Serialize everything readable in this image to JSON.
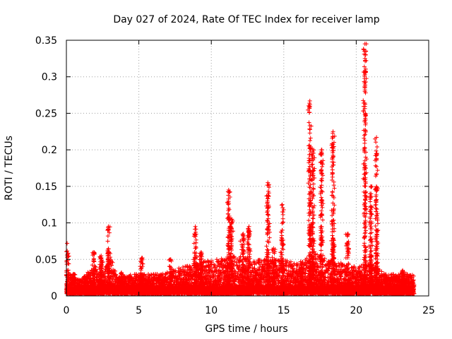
{
  "chart_data": {
    "type": "scatter",
    "title": "Day 027 of 2024, Rate Of TEC Index for receiver lamp",
    "xlabel": "GPS time / hours",
    "ylabel": "ROTI / TECUs",
    "xlim": [
      0,
      25
    ],
    "ylim": [
      0,
      0.35
    ],
    "xticks": [
      0,
      5,
      10,
      15,
      20,
      25
    ],
    "xtick_labels": [
      "0",
      "5",
      "10",
      "15",
      "20",
      "25"
    ],
    "yticks": [
      0,
      0.05,
      0.1,
      0.15,
      0.2,
      0.25,
      0.3,
      0.35
    ],
    "ytick_labels": [
      "0",
      "0.05",
      "0.1",
      "0.15",
      "0.2",
      "0.25",
      "0.3",
      "0.35"
    ],
    "grid": true,
    "marker": "+",
    "color": "#ff0000",
    "data_range": [
      0,
      24
    ],
    "baseline": {
      "min": 0.003,
      "typical": 0.02
    },
    "envelope": [
      [
        0.0,
        0.035
      ],
      [
        0.5,
        0.025
      ],
      [
        1.0,
        0.022
      ],
      [
        2.0,
        0.045
      ],
      [
        2.5,
        0.03
      ],
      [
        3.0,
        0.06
      ],
      [
        3.5,
        0.025
      ],
      [
        4.5,
        0.03
      ],
      [
        5.5,
        0.03
      ],
      [
        6.5,
        0.03
      ],
      [
        8.0,
        0.04
      ],
      [
        9.0,
        0.045
      ],
      [
        10.0,
        0.05
      ],
      [
        11.0,
        0.055
      ],
      [
        12.0,
        0.055
      ],
      [
        13.0,
        0.05
      ],
      [
        14.0,
        0.05
      ],
      [
        15.0,
        0.05
      ],
      [
        16.0,
        0.045
      ],
      [
        17.0,
        0.06
      ],
      [
        18.0,
        0.05
      ],
      [
        19.0,
        0.045
      ],
      [
        20.0,
        0.04
      ],
      [
        21.0,
        0.045
      ],
      [
        22.0,
        0.03
      ],
      [
        24.0,
        0.03
      ]
    ],
    "bursts": [
      {
        "t": 0.05,
        "peak": 0.072
      },
      {
        "t": 0.5,
        "peak": 0.03
      },
      {
        "t": 1.3,
        "peak": 0.025
      },
      {
        "t": 1.9,
        "peak": 0.06
      },
      {
        "t": 2.4,
        "peak": 0.055
      },
      {
        "t": 2.9,
        "peak": 0.095
      },
      {
        "t": 3.8,
        "peak": 0.032
      },
      {
        "t": 5.2,
        "peak": 0.052
      },
      {
        "t": 7.2,
        "peak": 0.05
      },
      {
        "t": 8.9,
        "peak": 0.095
      },
      {
        "t": 9.3,
        "peak": 0.06
      },
      {
        "t": 11.2,
        "peak": 0.145
      },
      {
        "t": 11.4,
        "peak": 0.105
      },
      {
        "t": 12.2,
        "peak": 0.085
      },
      {
        "t": 12.6,
        "peak": 0.095
      },
      {
        "t": 13.9,
        "peak": 0.155
      },
      {
        "t": 14.3,
        "peak": 0.065
      },
      {
        "t": 14.9,
        "peak": 0.125
      },
      {
        "t": 16.2,
        "peak": 0.045
      },
      {
        "t": 16.8,
        "peak": 0.267
      },
      {
        "t": 17.0,
        "peak": 0.2
      },
      {
        "t": 17.6,
        "peak": 0.2
      },
      {
        "t": 18.4,
        "peak": 0.225
      },
      {
        "t": 19.4,
        "peak": 0.085
      },
      {
        "t": 20.6,
        "peak": 0.345
      },
      {
        "t": 21.0,
        "peak": 0.15
      },
      {
        "t": 21.4,
        "peak": 0.217
      },
      {
        "t": 23.2,
        "peak": 0.035
      }
    ],
    "isolated_points": [
      {
        "x": 11.2,
        "y": 0.12
      },
      {
        "x": 13.9,
        "y": 0.12
      },
      {
        "x": 14.9,
        "y": 0.09
      },
      {
        "x": 16.8,
        "y": 0.233
      },
      {
        "x": 16.8,
        "y": 0.223
      },
      {
        "x": 20.6,
        "y": 0.325
      },
      {
        "x": 20.6,
        "y": 0.308
      },
      {
        "x": 20.6,
        "y": 0.282
      },
      {
        "x": 20.6,
        "y": 0.248
      },
      {
        "x": 20.6,
        "y": 0.213
      },
      {
        "x": 21.4,
        "y": 0.177
      },
      {
        "x": 18.4,
        "y": 0.19
      },
      {
        "x": 12.0,
        "y": 0.075
      },
      {
        "x": 20.7,
        "y": 0.345
      },
      {
        "x": 20.5,
        "y": 0.338
      }
    ]
  }
}
